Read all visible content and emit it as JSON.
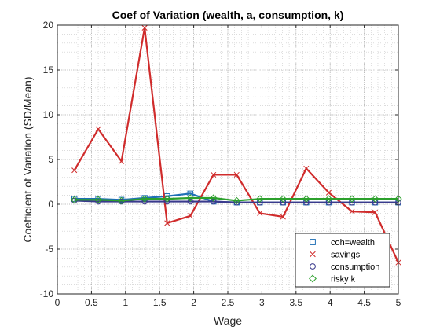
{
  "chart_data": {
    "type": "line",
    "title": "Coef of Variation (wealth, a, consumption, k)",
    "xlabel": "Wage",
    "ylabel": "Coefficient of Variation (SD/Mean)",
    "xlim": [
      0,
      5
    ],
    "ylim": [
      -10,
      20
    ],
    "xticks": [
      0,
      0.5,
      1,
      1.5,
      2,
      2.5,
      3,
      3.5,
      4,
      4.5,
      5
    ],
    "yticks": [
      -10,
      -5,
      0,
      5,
      10,
      15,
      20
    ],
    "grid": true,
    "minor_grid": true,
    "legend_position": "bottom-right",
    "x": [
      0.25,
      0.6,
      0.94,
      1.28,
      1.61,
      1.95,
      2.29,
      2.63,
      2.97,
      3.31,
      3.65,
      3.98,
      4.32,
      4.66,
      5.0
    ],
    "series": [
      {
        "name": "coh=wealth",
        "marker": "square",
        "color": "#1f6fb5",
        "values": [
          0.6,
          0.6,
          0.5,
          0.7,
          0.9,
          1.2,
          0.3,
          0.2,
          0.2,
          0.2,
          0.2,
          0.2,
          0.2,
          0.2,
          0.2
        ]
      },
      {
        "name": "savings",
        "marker": "x",
        "color": "#d02c2c",
        "values": [
          3.8,
          8.4,
          4.8,
          19.7,
          -2.1,
          -1.3,
          3.3,
          3.3,
          -1.0,
          -1.4,
          4.0,
          1.3,
          -0.8,
          -0.9,
          -6.5
        ]
      },
      {
        "name": "consumption",
        "marker": "circle",
        "color": "#3a3a8c",
        "values": [
          0.4,
          0.3,
          0.3,
          0.3,
          0.3,
          0.3,
          0.3,
          0.2,
          0.2,
          0.2,
          0.2,
          0.2,
          0.2,
          0.2,
          0.2
        ]
      },
      {
        "name": "risky k",
        "marker": "diamond",
        "color": "#2ca02c",
        "values": [
          0.5,
          0.5,
          0.4,
          0.6,
          0.6,
          0.7,
          0.7,
          0.4,
          0.6,
          0.6,
          0.6,
          0.6,
          0.6,
          0.6,
          0.6
        ]
      }
    ]
  }
}
